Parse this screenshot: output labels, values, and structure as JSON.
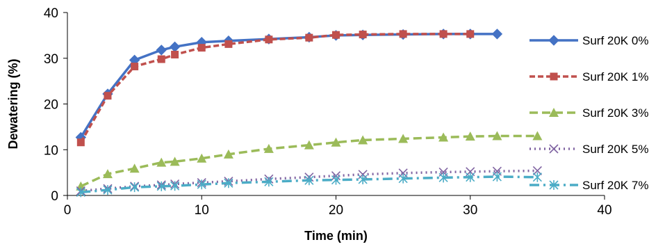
{
  "chart_data": {
    "type": "line",
    "title": "",
    "xlabel": "Time (min)",
    "ylabel": "Dewatering (%)",
    "xlim": [
      0,
      40
    ],
    "ylim": [
      0,
      40
    ],
    "xticks": [
      0,
      10,
      20,
      30,
      40
    ],
    "yticks": [
      0,
      10,
      20,
      30,
      40
    ],
    "grid": false,
    "legend_position": "right",
    "series": [
      {
        "name": "Surf 20K 0%",
        "color": "#4472C4",
        "marker": "diamond",
        "dash": "solid",
        "x": [
          1,
          3,
          5,
          7,
          8,
          10,
          12,
          15,
          18,
          20,
          22,
          25,
          28,
          30,
          32
        ],
        "y": [
          12.7,
          22.2,
          29.6,
          31.8,
          32.5,
          33.5,
          33.8,
          34.2,
          34.6,
          35.0,
          35.1,
          35.2,
          35.3,
          35.3,
          35.3
        ]
      },
      {
        "name": "Surf 20K 1%",
        "color": "#C0504D",
        "marker": "square",
        "dash": "dash",
        "x": [
          1,
          3,
          5,
          7,
          8,
          10,
          12,
          15,
          18,
          20,
          22,
          25,
          28,
          30
        ],
        "y": [
          11.6,
          21.8,
          28.2,
          29.8,
          30.8,
          32.3,
          33.1,
          34.1,
          34.5,
          35.1,
          35.2,
          35.3,
          35.3,
          35.3
        ]
      },
      {
        "name": "Surf 20K 3%",
        "color": "#9BBB59",
        "marker": "triangle",
        "dash": "longdash",
        "x": [
          1,
          3,
          5,
          7,
          8,
          10,
          12,
          15,
          18,
          20,
          22,
          25,
          28,
          30,
          32,
          35
        ],
        "y": [
          2.0,
          4.7,
          5.9,
          7.2,
          7.4,
          8.1,
          9.0,
          10.2,
          11.0,
          11.6,
          12.1,
          12.4,
          12.7,
          12.9,
          13.0,
          13.0
        ]
      },
      {
        "name": "Surf 20K 5%",
        "color": "#8064A2",
        "marker": "x",
        "dash": "dot",
        "x": [
          1,
          3,
          5,
          7,
          8,
          10,
          12,
          15,
          18,
          20,
          22,
          25,
          28,
          30,
          32,
          35
        ],
        "y": [
          1.0,
          1.5,
          2.0,
          2.3,
          2.5,
          2.8,
          3.1,
          3.6,
          4.0,
          4.3,
          4.6,
          4.9,
          5.1,
          5.2,
          5.3,
          5.4
        ]
      },
      {
        "name": "Surf 20K 7%",
        "color": "#4BACC6",
        "marker": "asterisk",
        "dash": "dashdot",
        "x": [
          1,
          3,
          5,
          7,
          8,
          10,
          12,
          15,
          18,
          20,
          22,
          25,
          28,
          30,
          32,
          35
        ],
        "y": [
          0.7,
          1.2,
          1.8,
          2.0,
          2.1,
          2.4,
          2.7,
          3.0,
          3.3,
          3.4,
          3.5,
          3.7,
          3.9,
          4.0,
          4.1,
          4.0
        ]
      }
    ]
  }
}
